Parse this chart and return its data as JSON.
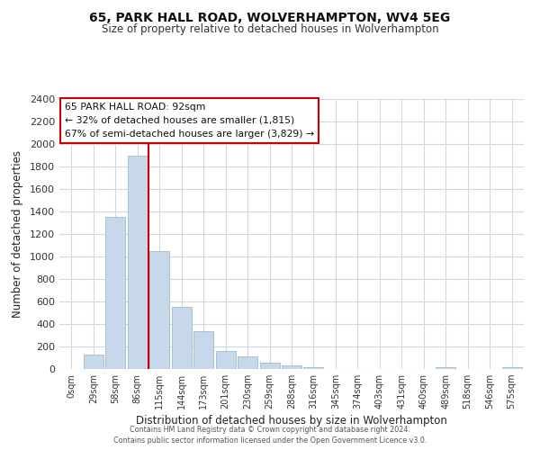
{
  "title": "65, PARK HALL ROAD, WOLVERHAMPTON, WV4 5EG",
  "subtitle": "Size of property relative to detached houses in Wolverhampton",
  "xlabel": "Distribution of detached houses by size in Wolverhampton",
  "ylabel": "Number of detached properties",
  "bar_labels": [
    "0sqm",
    "29sqm",
    "58sqm",
    "86sqm",
    "115sqm",
    "144sqm",
    "173sqm",
    "201sqm",
    "230sqm",
    "259sqm",
    "288sqm",
    "316sqm",
    "345sqm",
    "374sqm",
    "403sqm",
    "431sqm",
    "460sqm",
    "489sqm",
    "518sqm",
    "546sqm",
    "575sqm"
  ],
  "bar_values": [
    0,
    125,
    1350,
    1900,
    1050,
    550,
    335,
    160,
    110,
    60,
    30,
    20,
    0,
    0,
    0,
    0,
    0,
    15,
    0,
    0,
    15
  ],
  "bar_color": "#c8d8eb",
  "bar_edge_color": "#a0b8d0",
  "vline_color": "#cc0000",
  "vline_x": 3.5,
  "ylim": [
    0,
    2400
  ],
  "yticks": [
    0,
    200,
    400,
    600,
    800,
    1000,
    1200,
    1400,
    1600,
    1800,
    2000,
    2200,
    2400
  ],
  "annotation_title": "65 PARK HALL ROAD: 92sqm",
  "annotation_line1": "← 32% of detached houses are smaller (1,815)",
  "annotation_line2": "67% of semi-detached houses are larger (3,829) →",
  "annotation_box_color": "#ffffff",
  "annotation_box_edge": "#cc0000",
  "footer1": "Contains HM Land Registry data © Crown copyright and database right 2024.",
  "footer2": "Contains public sector information licensed under the Open Government Licence v3.0.",
  "background_color": "#ffffff",
  "grid_color": "#d0d8e4"
}
